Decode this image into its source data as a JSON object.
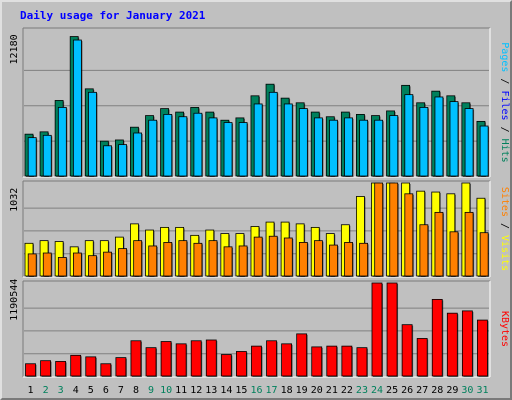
{
  "chart_data": {
    "title": "Daily usage for January 2021",
    "type": "bar",
    "categories": [
      "1",
      "2",
      "3",
      "4",
      "5",
      "6",
      "7",
      "8",
      "9",
      "10",
      "11",
      "12",
      "13",
      "14",
      "15",
      "16",
      "17",
      "18",
      "19",
      "20",
      "21",
      "22",
      "23",
      "24",
      "25",
      "26",
      "27",
      "28",
      "29",
      "30",
      "31"
    ],
    "weekend_days": [
      "2",
      "3",
      "9",
      "10",
      "16",
      "17",
      "23",
      "24",
      "30",
      "31"
    ],
    "colors": {
      "hits": "#00805c",
      "files": "#00c0ff",
      "sites": "#ff8000",
      "visits": "#ffff00",
      "kbytes": "#ff0000",
      "weekday_label": "#000000",
      "weekend_label": "#00805c",
      "title": "#0000ff",
      "background": "#c0c0c0"
    },
    "panels": [
      {
        "ylabel_parts": [
          {
            "text": "Pages",
            "color": "#00c0ff"
          },
          {
            "text": " / ",
            "color": "#000000"
          },
          {
            "text": "Files",
            "color": "#0000ff"
          },
          {
            "text": " / ",
            "color": "#000000"
          },
          {
            "text": "Hits",
            "color": "#00805c"
          }
        ],
        "ymax_label": "12180",
        "ymax": 12180,
        "series": [
          {
            "name": "Hits",
            "color": "#00805c",
            "values": [
              3600,
              3800,
              6500,
              12000,
              7500,
              3000,
              3100,
              4200,
              5200,
              5800,
              5500,
              5900,
              5500,
              4800,
              5000,
              6900,
              7900,
              6700,
              6300,
              5500,
              5100,
              5500,
              5300,
              5200,
              5600,
              7800,
              6300,
              7300,
              6900,
              6300,
              4700
            ]
          },
          {
            "name": "Files",
            "color": "#00c0ff",
            "values": [
              3300,
              3500,
              5900,
              11700,
              7200,
              2600,
              2700,
              3700,
              4800,
              5300,
              5100,
              5400,
              5000,
              4600,
              4600,
              6200,
              7200,
              6200,
              5800,
              5000,
              4800,
              5000,
              4800,
              4800,
              5200,
              7000,
              5900,
              6800,
              6400,
              5800,
              4300
            ]
          }
        ]
      },
      {
        "ylabel_parts": [
          {
            "text": "Sites",
            "color": "#ff8000"
          },
          {
            "text": " / ",
            "color": "#000000"
          },
          {
            "text": "Visits",
            "color": "#ffff00"
          }
        ],
        "ymax_label": "1032",
        "ymax": 1032,
        "series": [
          {
            "name": "Visits",
            "color": "#ffff00",
            "values": [
              370,
              400,
              390,
              330,
              400,
              400,
              440,
              590,
              520,
              550,
              550,
              460,
              520,
              480,
              480,
              560,
              610,
              610,
              590,
              550,
              480,
              580,
              900,
              1300,
              1240,
              1060,
              960,
              950,
              930,
              1300,
              880
            ]
          },
          {
            "name": "Sites",
            "color": "#ff8000",
            "values": [
              250,
              260,
              210,
              260,
              230,
              270,
              310,
              400,
              340,
              380,
              400,
              370,
              400,
              330,
              340,
              440,
              450,
              430,
              380,
              400,
              350,
              380,
              370,
              1340,
              1260,
              930,
              580,
              720,
              500,
              720,
              490
            ]
          }
        ]
      },
      {
        "ylabel_parts": [
          {
            "text": "KBytes",
            "color": "#ff0000"
          }
        ],
        "ymax_label": "1190544",
        "ymax": 1190544,
        "series": [
          {
            "name": "KBytes",
            "color": "#ff0000",
            "values": [
              160000,
              200000,
              190000,
              270000,
              250000,
              160000,
              240000,
              460000,
              370000,
              450000,
              420000,
              460000,
              470000,
              280000,
              320000,
              390000,
              460000,
              420000,
              550000,
              380000,
              390000,
              390000,
              370000,
              1500000,
              1250000,
              670000,
              490000,
              1000000,
              820000,
              850000,
              730000
            ]
          }
        ]
      }
    ]
  }
}
